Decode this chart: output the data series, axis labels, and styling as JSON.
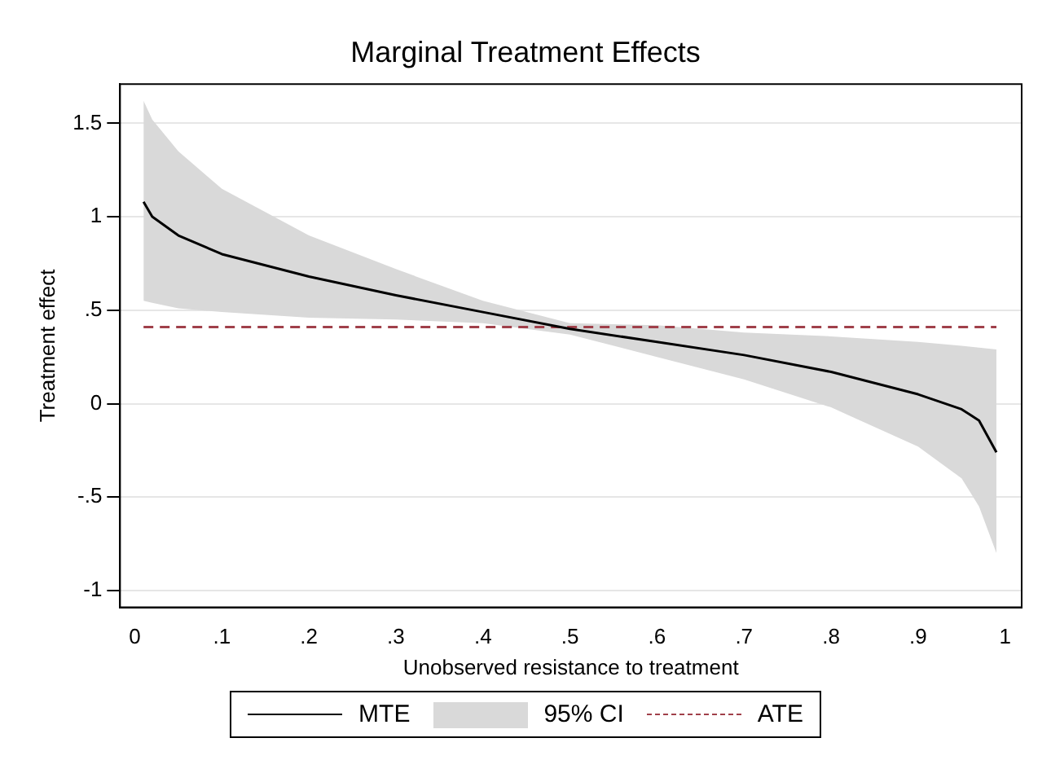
{
  "chart_data": {
    "type": "line",
    "title": "Marginal Treatment Effects",
    "xlabel": "Unobserved resistance to treatment",
    "ylabel": "Treatment effect",
    "xlim": [
      -0.017,
      1.019
    ],
    "ylim": [
      -1.09,
      1.71
    ],
    "xticks": [
      0,
      {
        "value": 0.1,
        "label": ".1"
      },
      {
        "value": 0.2,
        "label": ".2"
      },
      {
        "value": 0.3,
        "label": ".3"
      },
      {
        "value": 0.4,
        "label": ".4"
      },
      {
        "value": 0.5,
        "label": ".5"
      },
      {
        "value": 0.6,
        "label": ".6"
      },
      {
        "value": 0.7,
        "label": ".7"
      },
      {
        "value": 0.8,
        "label": ".8"
      },
      {
        "value": 0.9,
        "label": ".9"
      },
      1
    ],
    "yticks": [
      -1,
      {
        "value": -0.5,
        "label": "-.5"
      },
      0,
      {
        "value": 0.5,
        "label": ".5"
      },
      1,
      1.5
    ],
    "grid": "y",
    "legend": "bottom",
    "marker": "none",
    "annotations": [
      "95% CI"
    ],
    "series": [
      {
        "name": "MTE",
        "type": "line",
        "color": "#000000",
        "line_style": "solid",
        "x": [
          0.01,
          0.02,
          0.05,
          0.1,
          0.2,
          0.3,
          0.4,
          0.5,
          0.6,
          0.7,
          0.8,
          0.9,
          0.95,
          0.97,
          0.99
        ],
        "values": [
          1.08,
          1.0,
          0.9,
          0.8,
          0.68,
          0.58,
          0.49,
          0.4,
          0.33,
          0.26,
          0.17,
          0.05,
          -0.03,
          -0.09,
          -0.26
        ],
        "lower": [
          0.55,
          0.54,
          0.51,
          0.49,
          0.46,
          0.45,
          0.43,
          0.37,
          0.25,
          0.13,
          -0.02,
          -0.23,
          -0.4,
          -0.55,
          -0.8
        ],
        "upper": [
          1.62,
          1.52,
          1.35,
          1.15,
          0.9,
          0.72,
          0.55,
          0.43,
          0.42,
          0.38,
          0.36,
          0.33,
          0.31,
          0.3,
          0.29
        ]
      },
      {
        "name": "ATE",
        "type": "line",
        "color": "#a0404a",
        "line_style": "dashed",
        "x": [
          0.01,
          0.99
        ],
        "values": [
          0.41,
          0.41
        ]
      }
    ]
  }
}
